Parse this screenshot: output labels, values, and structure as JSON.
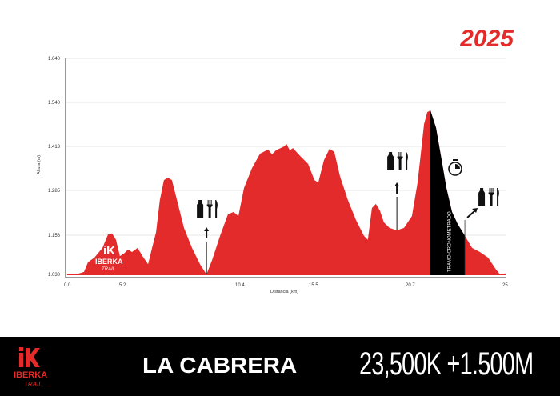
{
  "year": "2025",
  "logo": {
    "brand": "IBERKA",
    "sub": "TRAIL"
  },
  "footer": {
    "race_name": "LA CABRERA",
    "stats": "23,500K +1.500M"
  },
  "colors": {
    "profile": "#e32b2b",
    "timed": "#000000",
    "accent": "#e32b2b"
  },
  "chart_data": {
    "type": "area",
    "xlabel": "Distancia (km)",
    "ylabel": "Altura (m)",
    "x_ticks": [
      "0.0",
      "5.2",
      "10.4",
      "15.5",
      "20.7",
      "25"
    ],
    "x_tick_values": [
      0,
      5.2,
      10.4,
      15.5,
      20.7,
      25
    ],
    "y_ticks": [
      "1.640",
      "1.540",
      "1.413",
      "1.285",
      "1.156",
      "1.030"
    ],
    "y_tick_values": [
      1640,
      1540,
      1413,
      1285,
      1156,
      1030
    ],
    "xlim": [
      0,
      25
    ],
    "ylim": [
      1030,
      1640
    ],
    "grid": true,
    "profile": [
      [
        0,
        1030
      ],
      [
        0.83,
        1030
      ],
      [
        1.58,
        1038
      ],
      [
        1.96,
        1069
      ],
      [
        2.56,
        1084
      ],
      [
        3.32,
        1115
      ],
      [
        3.84,
        1158
      ],
      [
        4.22,
        1161
      ],
      [
        4.6,
        1141
      ],
      [
        4.97,
        1089
      ],
      [
        5.27,
        1097
      ],
      [
        5.45,
        1110
      ],
      [
        5.63,
        1102
      ],
      [
        5.88,
        1115
      ],
      [
        6.1,
        1089
      ],
      [
        6.35,
        1063
      ],
      [
        6.53,
        1115
      ],
      [
        6.71,
        1165
      ],
      [
        6.88,
        1257
      ],
      [
        7.06,
        1315
      ],
      [
        7.24,
        1322
      ],
      [
        7.42,
        1315
      ],
      [
        7.6,
        1269
      ],
      [
        7.96,
        1177
      ],
      [
        8.32,
        1115
      ],
      [
        8.68,
        1063
      ],
      [
        8.97,
        1030
      ],
      [
        9.22,
        1076
      ],
      [
        9.58,
        1154
      ],
      [
        9.93,
        1216
      ],
      [
        10.18,
        1223
      ],
      [
        10.4,
        1211
      ],
      [
        10.79,
        1292
      ],
      [
        11.34,
        1350
      ],
      [
        11.9,
        1392
      ],
      [
        12.46,
        1404
      ],
      [
        12.73,
        1390
      ],
      [
        13.01,
        1402
      ],
      [
        13.57,
        1413
      ],
      [
        13.73,
        1420
      ],
      [
        13.96,
        1402
      ],
      [
        14.18,
        1408
      ],
      [
        14.68,
        1385
      ],
      [
        15.23,
        1362
      ],
      [
        15.63,
        1315
      ],
      [
        15.84,
        1308
      ],
      [
        16.14,
        1373
      ],
      [
        16.44,
        1406
      ],
      [
        16.7,
        1397
      ],
      [
        17.0,
        1327
      ],
      [
        17.43,
        1257
      ],
      [
        17.86,
        1200
      ],
      [
        18.29,
        1154
      ],
      [
        18.5,
        1141
      ],
      [
        18.72,
        1234
      ],
      [
        18.93,
        1246
      ],
      [
        19.15,
        1227
      ],
      [
        19.36,
        1193
      ],
      [
        19.66,
        1177
      ],
      [
        20.06,
        1170
      ],
      [
        20.44,
        1177
      ],
      [
        20.84,
        1211
      ],
      [
        21.09,
        1308
      ],
      [
        21.38,
        1478
      ],
      [
        21.52,
        1512
      ],
      [
        21.66,
        1517
      ],
      [
        21.91,
        1467
      ],
      [
        22.16,
        1373
      ],
      [
        22.37,
        1292
      ],
      [
        22.62,
        1223
      ],
      [
        22.87,
        1188
      ],
      [
        23.19,
        1154
      ],
      [
        23.51,
        1115
      ],
      [
        23.86,
        1102
      ],
      [
        24.22,
        1084
      ],
      [
        24.57,
        1046
      ],
      [
        24.75,
        1030
      ],
      [
        25,
        1033
      ]
    ],
    "timed_section": {
      "label": "TRAMO CRONOMETRADO",
      "start_km": 21.66,
      "end_km": 23.19
    },
    "aid_stations": [
      {
        "km": 8.97,
        "services": [
          "water-bottle",
          "fork",
          "knife"
        ]
      },
      {
        "km": 20.06,
        "services": [
          "water-bottle",
          "fork",
          "knife"
        ]
      },
      {
        "km": 23.19,
        "services": [
          "water-bottle",
          "fork",
          "knife"
        ]
      }
    ],
    "annotations": [
      {
        "icon": "stopwatch",
        "meaning": "timed section"
      }
    ]
  }
}
